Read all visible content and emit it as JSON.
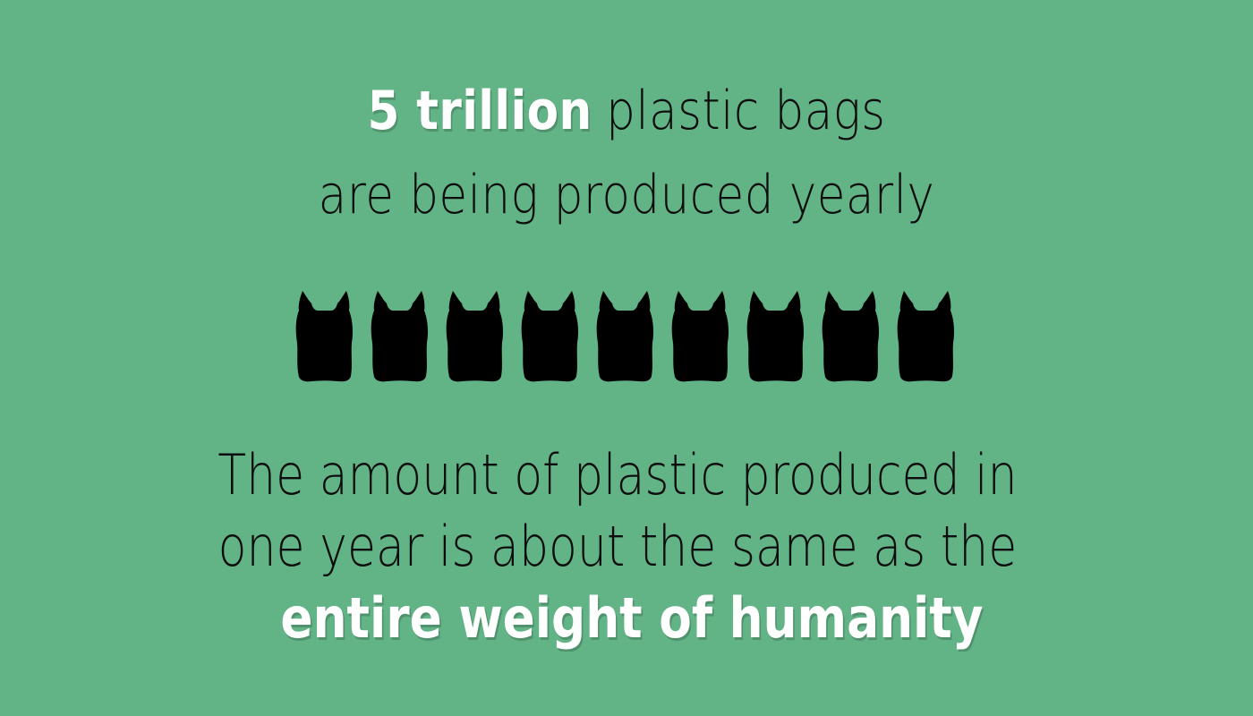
{
  "headline": {
    "stat": "5 trillion",
    "rest": "plastic bags",
    "line2": "are being produced yearly"
  },
  "icons": {
    "name": "plastic-bag-icon",
    "count": 9,
    "color": "#000000"
  },
  "body": {
    "line1": "The amount of plastic produced in",
    "line2": "one year is about the same as the",
    "emphasis": "entire weight of humanity"
  },
  "colors": {
    "background": "#62b386",
    "text": "#0d0d0d",
    "highlight": "#ffffff"
  }
}
